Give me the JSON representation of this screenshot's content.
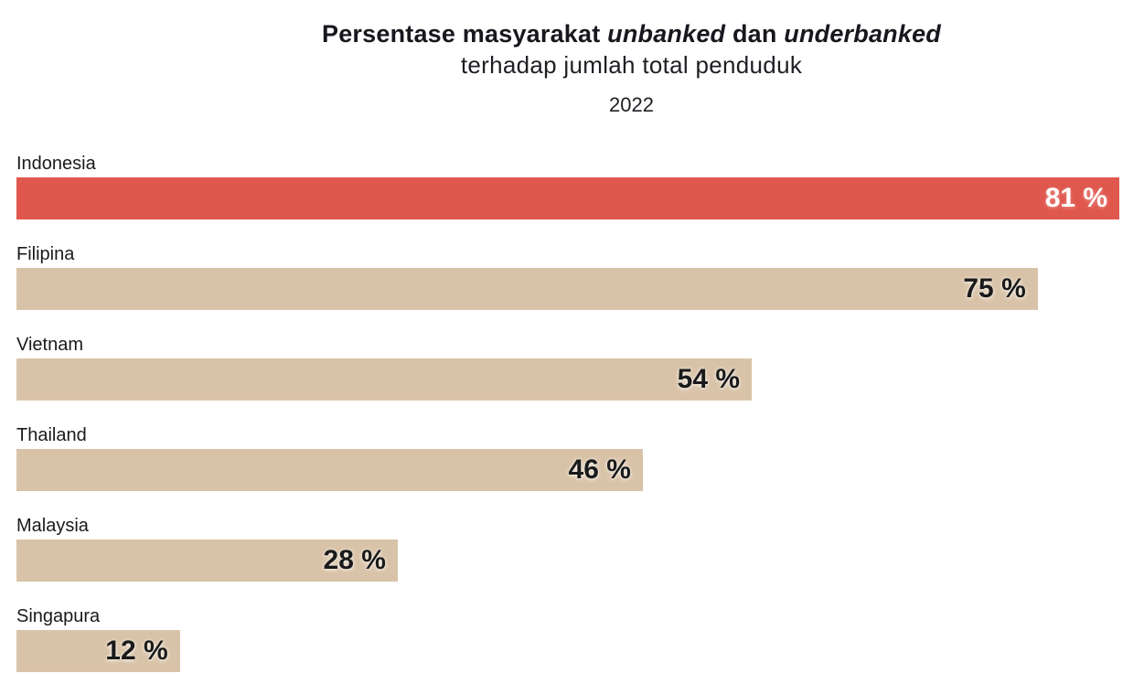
{
  "title": {
    "part1": "Persentase masyarakat ",
    "italic1": "unbanked",
    "part2": " dan ",
    "italic2": "underbanked",
    "line2": "terhadap jumlah total penduduk",
    "year": "2022"
  },
  "chart_data": {
    "type": "bar",
    "orientation": "horizontal",
    "title": "Persentase masyarakat unbanked dan underbanked terhadap jumlah total penduduk",
    "subtitle": "2022",
    "categories": [
      "Indonesia",
      "Filipina",
      "Vietnam",
      "Thailand",
      "Malaysia",
      "Singapura"
    ],
    "values": [
      81,
      75,
      54,
      46,
      28,
      12
    ],
    "value_labels": [
      "81 %",
      "75 %",
      "54 %",
      "46 %",
      "28 %",
      "12 %"
    ],
    "value_suffix": " %",
    "xlim": [
      0,
      83
    ],
    "grid": false,
    "legend": "none",
    "value_label_position": "inside-end",
    "highlight_category": "Indonesia",
    "colors": {
      "bar_default": "#d9c3a8",
      "bar_highlight": "#e0574e",
      "value_label_default": "#1a1a1a",
      "value_label_highlight": "#ffffff",
      "category_label": "#1a1a1a",
      "title_text": "#17181d"
    }
  }
}
